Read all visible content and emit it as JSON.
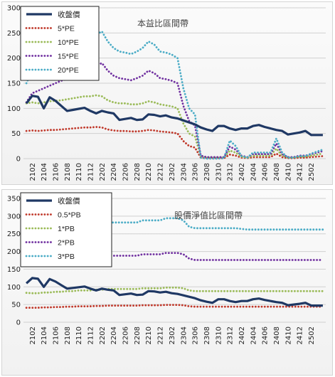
{
  "chart_data": [
    {
      "type": "line",
      "title": "本益比區間帶",
      "x": [
        "2101",
        "2102",
        "2103",
        "2104",
        "2105",
        "2106",
        "2107",
        "2108",
        "2109",
        "2110",
        "2111",
        "2112",
        "2201",
        "2202",
        "2203",
        "2204",
        "2205",
        "2206",
        "2207",
        "2208",
        "2209",
        "2210",
        "2211",
        "2212",
        "2301",
        "2302",
        "2303",
        "2304",
        "2305",
        "2306",
        "2307",
        "2308",
        "2309",
        "2310",
        "2311",
        "2312",
        "2401",
        "2402",
        "2403",
        "2404",
        "2405",
        "2406",
        "2407",
        "2408",
        "2409",
        "2410",
        "2411",
        "2412",
        "2501",
        "2502",
        "2503",
        "2504"
      ],
      "xticks": [
        "2102",
        "2104",
        "2106",
        "2108",
        "2110",
        "2112",
        "2202",
        "2204",
        "2206",
        "2208",
        "2210",
        "2212",
        "2302",
        "2304",
        "2306",
        "2308",
        "2310",
        "2312",
        "2402",
        "2404",
        "2406",
        "2408",
        "2410",
        "2412",
        "2502"
      ],
      "ylim": [
        0,
        300
      ],
      "yticks": [
        0,
        50,
        100,
        150,
        200,
        250,
        300
      ],
      "legend": "top-left",
      "series": [
        {
          "name": "收盤價",
          "color": "#1f3864",
          "style": "solid",
          "values": [
            110,
            125,
            123,
            100,
            122,
            115,
            105,
            95,
            97,
            99,
            101,
            95,
            90,
            95,
            92,
            90,
            77,
            79,
            81,
            77,
            78,
            88,
            87,
            84,
            86,
            82,
            80,
            76,
            72,
            68,
            62,
            58,
            55,
            65,
            65,
            60,
            57,
            60,
            60,
            65,
            67,
            63,
            60,
            57,
            55,
            48,
            50,
            52,
            55,
            47,
            47,
            47
          ]
        },
        {
          "name": "5*PE",
          "color": "#c0392b",
          "style": "dotted",
          "values": [
            55,
            56,
            55,
            56,
            57,
            57,
            58,
            59,
            60,
            61,
            62,
            62,
            63,
            62,
            58,
            56,
            55,
            55,
            54,
            54,
            55,
            57,
            56,
            54,
            53,
            52,
            50,
            35,
            25,
            22,
            2,
            1,
            1,
            1,
            1,
            8,
            6,
            2,
            1,
            3,
            3,
            3,
            3,
            10,
            3,
            1,
            1,
            2,
            2,
            3,
            4,
            5
          ]
        },
        {
          "name": "10*PE",
          "color": "#9bbb59",
          "style": "dotted",
          "values": [
            110,
            112,
            110,
            112,
            114,
            115,
            116,
            118,
            120,
            122,
            124,
            124,
            126,
            124,
            116,
            112,
            110,
            110,
            108,
            108,
            110,
            114,
            112,
            108,
            106,
            104,
            100,
            70,
            50,
            44,
            4,
            2,
            2,
            2,
            2,
            16,
            12,
            4,
            2,
            6,
            6,
            6,
            6,
            20,
            6,
            2,
            2,
            4,
            4,
            6,
            8,
            10
          ]
        },
        {
          "name": "15*PE",
          "color": "#7030a0",
          "style": "dotted",
          "values": [
            112,
            130,
            135,
            140,
            145,
            150,
            155,
            158,
            165,
            170,
            175,
            180,
            185,
            190,
            175,
            165,
            160,
            158,
            156,
            160,
            165,
            175,
            170,
            160,
            158,
            155,
            150,
            105,
            75,
            66,
            6,
            3,
            3,
            3,
            3,
            24,
            18,
            6,
            3,
            9,
            9,
            9,
            9,
            30,
            9,
            3,
            3,
            6,
            6,
            9,
            12,
            15
          ]
        },
        {
          "name": "20*PE",
          "color": "#4bacc6",
          "style": "dotted",
          "values": [
            150,
            175,
            180,
            187,
            193,
            200,
            207,
            211,
            220,
            227,
            233,
            240,
            247,
            253,
            233,
            220,
            213,
            211,
            208,
            213,
            220,
            233,
            227,
            213,
            211,
            207,
            200,
            140,
            100,
            88,
            2,
            0,
            0,
            0,
            1,
            36,
            25,
            5,
            2,
            12,
            12,
            12,
            12,
            40,
            12,
            2,
            2,
            5,
            5,
            10,
            14,
            18
          ]
        }
      ]
    },
    {
      "type": "line",
      "title": "股價淨值比區間帶",
      "x": [
        "2101",
        "2102",
        "2103",
        "2104",
        "2105",
        "2106",
        "2107",
        "2108",
        "2109",
        "2110",
        "2111",
        "2112",
        "2201",
        "2202",
        "2203",
        "2204",
        "2205",
        "2206",
        "2207",
        "2208",
        "2209",
        "2210",
        "2211",
        "2212",
        "2301",
        "2302",
        "2303",
        "2304",
        "2305",
        "2306",
        "2307",
        "2308",
        "2309",
        "2310",
        "2311",
        "2312",
        "2401",
        "2402",
        "2403",
        "2404",
        "2405",
        "2406",
        "2407",
        "2408",
        "2409",
        "2410",
        "2411",
        "2412",
        "2501",
        "2502",
        "2503",
        "2504"
      ],
      "xticks": [
        "2102",
        "2104",
        "2106",
        "2108",
        "2110",
        "2112",
        "2202",
        "2204",
        "2206",
        "2208",
        "2210",
        "2212",
        "2302",
        "2304",
        "2306",
        "2308",
        "2310",
        "2312",
        "2402",
        "2404",
        "2406",
        "2408",
        "2410",
        "2412",
        "2502"
      ],
      "ylim": [
        0,
        350
      ],
      "yticks": [
        0,
        50,
        100,
        150,
        200,
        250,
        300,
        350
      ],
      "legend": "top-left",
      "series": [
        {
          "name": "收盤價",
          "color": "#1f3864",
          "style": "solid",
          "values": [
            110,
            125,
            123,
            100,
            122,
            115,
            105,
            95,
            97,
            99,
            101,
            95,
            90,
            95,
            92,
            90,
            77,
            79,
            81,
            77,
            78,
            88,
            87,
            84,
            86,
            82,
            80,
            76,
            72,
            68,
            62,
            58,
            55,
            65,
            65,
            60,
            57,
            60,
            60,
            65,
            67,
            63,
            60,
            57,
            55,
            48,
            50,
            52,
            55,
            47,
            47,
            47
          ]
        },
        {
          "name": "0.5*PB",
          "color": "#c0392b",
          "style": "dotted",
          "values": [
            41,
            41,
            41,
            42,
            42,
            43,
            43,
            44,
            44,
            45,
            45,
            45,
            46,
            46,
            47,
            47,
            47,
            47,
            47,
            47,
            48,
            48,
            48,
            48,
            49,
            49,
            49,
            48,
            45,
            44,
            44,
            44,
            44,
            44,
            44,
            44,
            44,
            44,
            44,
            44,
            44,
            44,
            44,
            44,
            44,
            44,
            44,
            44,
            44,
            44,
            44,
            44
          ]
        },
        {
          "name": "1*PB",
          "color": "#9bbb59",
          "style": "dotted",
          "values": [
            83,
            82,
            82,
            84,
            84,
            86,
            86,
            88,
            88,
            90,
            90,
            90,
            92,
            92,
            94,
            94,
            94,
            94,
            94,
            94,
            96,
            96,
            96,
            96,
            98,
            98,
            98,
            96,
            90,
            88,
            88,
            88,
            88,
            88,
            88,
            88,
            88,
            88,
            88,
            88,
            88,
            88,
            88,
            88,
            88,
            88,
            88,
            88,
            88,
            88,
            88,
            88
          ]
        },
        {
          "name": "2*PB",
          "color": "#7030a0",
          "style": "dotted",
          "values": [
            165,
            164,
            164,
            168,
            168,
            172,
            172,
            176,
            176,
            180,
            180,
            180,
            184,
            184,
            188,
            188,
            188,
            188,
            188,
            188,
            192,
            192,
            192,
            192,
            196,
            196,
            196,
            192,
            180,
            176,
            176,
            176,
            176,
            176,
            176,
            176,
            176,
            176,
            176,
            176,
            176,
            176,
            176,
            176,
            176,
            176,
            176,
            176,
            176,
            176,
            176,
            176
          ]
        },
        {
          "name": "3*PB",
          "color": "#4bacc6",
          "style": "dotted",
          "values": [
            248,
            246,
            246,
            252,
            252,
            258,
            258,
            264,
            264,
            270,
            270,
            270,
            276,
            276,
            282,
            282,
            282,
            282,
            282,
            282,
            288,
            288,
            288,
            288,
            294,
            294,
            294,
            288,
            270,
            266,
            266,
            266,
            266,
            266,
            266,
            266,
            266,
            264,
            262,
            262,
            262,
            262,
            262,
            262,
            262,
            262,
            262,
            262,
            262,
            262,
            262,
            262
          ]
        }
      ]
    }
  ]
}
